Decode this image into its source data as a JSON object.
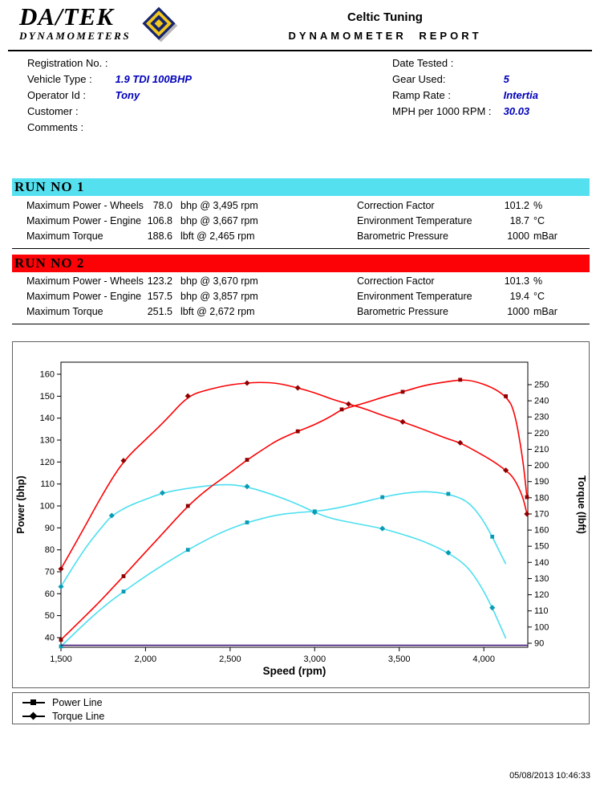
{
  "header": {
    "logo_text": "DA/TEK",
    "logo_sub": "DYNAMOMETERS",
    "title": "Celtic Tuning",
    "subtitle": "DYNAMOMETER REPORT"
  },
  "info": {
    "left": [
      {
        "label": "Registration No. :",
        "value": ""
      },
      {
        "label": "Vehicle Type :",
        "value": "1.9 TDI 100BHP"
      },
      {
        "label": "Operator Id :",
        "value": "Tony"
      },
      {
        "label": "Customer :",
        "value": ""
      },
      {
        "label": "Comments :",
        "value": ""
      }
    ],
    "right": [
      {
        "label": "Date Tested :",
        "value": ""
      },
      {
        "label": "Gear Used:",
        "value": "5"
      },
      {
        "label": "Ramp Rate :",
        "value": "Intertia"
      },
      {
        "label": "MPH per 1000 RPM :",
        "value": "30.03"
      }
    ]
  },
  "runs": [
    {
      "title": "RUN NO 1",
      "banner_color": "#55e0f0",
      "stats": [
        {
          "label": "Maximum Power - Wheels",
          "value": "78.0",
          "unit": "bhp @ 3,495 rpm",
          "label2": "Correction Factor",
          "value2": "101.2",
          "unit2": "%"
        },
        {
          "label": "Maximum Power - Engine",
          "value": "106.8",
          "unit": "bhp @ 3,667 rpm",
          "label2": "Environment Temperature",
          "value2": "18.7",
          "unit2": "°C"
        },
        {
          "label": "Maximum Torque",
          "value": "188.6",
          "unit": "lbft @ 2,465 rpm",
          "label2": "Barometric Pressure",
          "value2": "1000",
          "unit2": "mBar"
        }
      ]
    },
    {
      "title": "RUN NO 2",
      "banner_color": "#fc0206",
      "stats": [
        {
          "label": "Maximum Power - Wheels",
          "value": "123.2",
          "unit": "bhp @ 3,670 rpm",
          "label2": "Correction Factor",
          "value2": "101.3",
          "unit2": "%"
        },
        {
          "label": "Maximum Power - Engine",
          "value": "157.5",
          "unit": "bhp @ 3,857 rpm",
          "label2": "Environment Temperature",
          "value2": "19.4",
          "unit2": "°C"
        },
        {
          "label": "Maximum Torque",
          "value": "251.5",
          "unit": "lbft @ 2,672 rpm",
          "label2": "Barometric Pressure",
          "value2": "1000",
          "unit2": "mBar"
        }
      ]
    }
  ],
  "chart_data": {
    "type": "line",
    "xlabel": "Speed (rpm)",
    "ylabel_left": "Power (bhp)",
    "ylabel_right": "Torque (lbft)",
    "grid": false,
    "x_axis": {
      "min": 1500,
      "max": 4260,
      "ticks": [
        1500,
        2000,
        2500,
        3000,
        3500,
        4000
      ],
      "tick_labels": [
        "1,500",
        "2,000",
        "2,500",
        "3,000",
        "3,500",
        "4,000"
      ]
    },
    "left_axis": {
      "min": 35.6,
      "max": 165.5,
      "ticks": [
        40,
        50,
        60,
        70,
        80,
        90,
        100,
        110,
        120,
        130,
        140,
        150,
        160
      ]
    },
    "right_axis": {
      "min": 87.5,
      "max": 263.9,
      "ticks": [
        90,
        100,
        110,
        120,
        130,
        140,
        150,
        160,
        170,
        180,
        190,
        200,
        210,
        220,
        230,
        240,
        250
      ]
    },
    "series": [
      {
        "name": "Run 1 Torque",
        "axis": "right",
        "color": "#4cdff0",
        "marker_color": "#0a9ab5",
        "marker": "diamond",
        "points": [
          [
            1500,
            125
          ],
          [
            1620,
            146
          ],
          [
            1750,
            163
          ],
          [
            1800,
            169
          ],
          [
            1900,
            175
          ],
          [
            2000,
            179
          ],
          [
            2100,
            183
          ],
          [
            2250,
            186
          ],
          [
            2465,
            188.6
          ],
          [
            2600,
            187
          ],
          [
            2780,
            181
          ],
          [
            2900,
            176
          ],
          [
            3000,
            171
          ],
          [
            3100,
            167
          ],
          [
            3250,
            164
          ],
          [
            3400,
            161
          ],
          [
            3500,
            158
          ],
          [
            3650,
            153
          ],
          [
            3790,
            146
          ],
          [
            3900,
            138
          ],
          [
            3980,
            126
          ],
          [
            4050,
            112
          ],
          [
            4100,
            100
          ],
          [
            4130,
            93
          ]
        ]
      },
      {
        "name": "Run 1 Power",
        "axis": "left",
        "color": "#4cdff0",
        "marker_color": "#0a9ab5",
        "marker": "square",
        "points": [
          [
            1500,
            36
          ],
          [
            1620,
            45
          ],
          [
            1750,
            54
          ],
          [
            1870,
            61
          ],
          [
            2000,
            68
          ],
          [
            2120,
            74
          ],
          [
            2250,
            80
          ],
          [
            2370,
            85
          ],
          [
            2465,
            88.5
          ],
          [
            2600,
            92.5
          ],
          [
            2780,
            96
          ],
          [
            2900,
            97
          ],
          [
            3000,
            97.5
          ],
          [
            3100,
            98.5
          ],
          [
            3250,
            101
          ],
          [
            3400,
            104
          ],
          [
            3500,
            105.5
          ],
          [
            3650,
            106.8
          ],
          [
            3790,
            105.5
          ],
          [
            3900,
            102.5
          ],
          [
            3980,
            95.5
          ],
          [
            4050,
            86
          ],
          [
            4100,
            78
          ],
          [
            4130,
            73.5
          ]
        ]
      },
      {
        "name": "Run 2 Torque",
        "axis": "right",
        "color": "#fb0204",
        "marker_color": "#8f0000",
        "marker": "diamond",
        "points": [
          [
            1500,
            136
          ],
          [
            1620,
            158
          ],
          [
            1750,
            183
          ],
          [
            1870,
            203
          ],
          [
            2000,
            216
          ],
          [
            2120,
            228
          ],
          [
            2250,
            243
          ],
          [
            2370,
            247
          ],
          [
            2500,
            250
          ],
          [
            2600,
            251
          ],
          [
            2672,
            251.5
          ],
          [
            2780,
            251
          ],
          [
            2900,
            248
          ],
          [
            3000,
            245
          ],
          [
            3100,
            241
          ],
          [
            3200,
            238
          ],
          [
            3300,
            235
          ],
          [
            3400,
            231
          ],
          [
            3520,
            227
          ],
          [
            3650,
            222
          ],
          [
            3770,
            217
          ],
          [
            3860,
            214
          ],
          [
            3950,
            209
          ],
          [
            4050,
            203
          ],
          [
            4130,
            197
          ],
          [
            4180,
            192
          ],
          [
            4230,
            181
          ],
          [
            4255,
            170
          ]
        ]
      },
      {
        "name": "Run 2 Power",
        "axis": "left",
        "color": "#fb0204",
        "marker_color": "#8f0000",
        "marker": "square",
        "points": [
          [
            1500,
            39
          ],
          [
            1620,
            48
          ],
          [
            1750,
            58
          ],
          [
            1870,
            68
          ],
          [
            2000,
            79
          ],
          [
            2120,
            89
          ],
          [
            2250,
            100
          ],
          [
            2370,
            108
          ],
          [
            2500,
            115
          ],
          [
            2600,
            121
          ],
          [
            2700,
            126
          ],
          [
            2780,
            130
          ],
          [
            2900,
            134
          ],
          [
            3000,
            137
          ],
          [
            3100,
            141
          ],
          [
            3160,
            144
          ],
          [
            3300,
            147
          ],
          [
            3400,
            149.5
          ],
          [
            3520,
            152
          ],
          [
            3650,
            155
          ],
          [
            3770,
            156.5
          ],
          [
            3860,
            157.5
          ],
          [
            3940,
            157
          ],
          [
            4050,
            154
          ],
          [
            4130,
            150
          ],
          [
            4180,
            144
          ],
          [
            4230,
            122
          ],
          [
            4255,
            104
          ]
        ]
      },
      {
        "name": "Baseline",
        "axis": "left",
        "color": "#3a1073",
        "marker": "none",
        "points": [
          [
            1500,
            36.5
          ],
          [
            4260,
            36.5
          ]
        ]
      }
    ]
  },
  "legend": {
    "items": [
      {
        "marker": "square",
        "label": "Power Line"
      },
      {
        "marker": "diamond",
        "label": "Torque Line"
      }
    ]
  },
  "footer": {
    "timestamp": "05/08/2013 10:46:33"
  }
}
